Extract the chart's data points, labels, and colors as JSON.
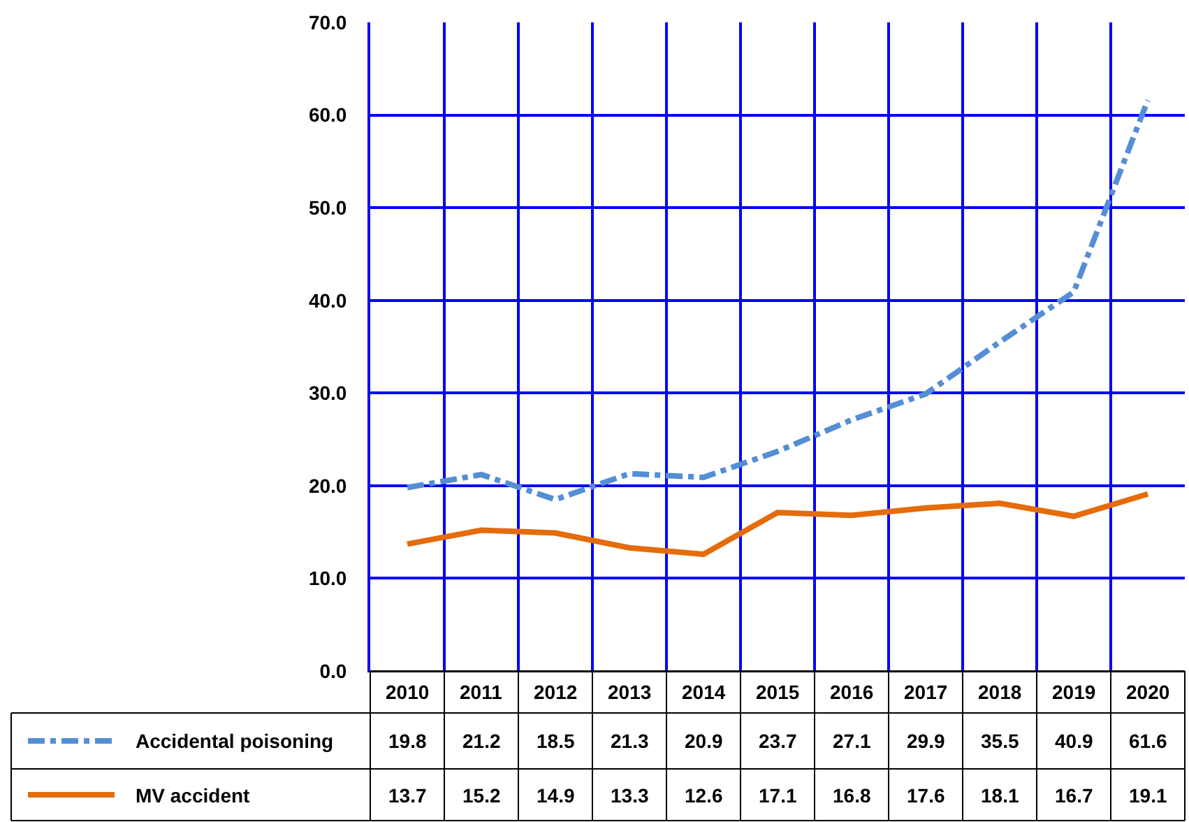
{
  "chart_data": {
    "type": "line",
    "categories": [
      "2010",
      "2011",
      "2012",
      "2013",
      "2014",
      "2015",
      "2016",
      "2017",
      "2018",
      "2019",
      "2020"
    ],
    "series": [
      {
        "name": "Accidental poisoning",
        "color": "#558ed5",
        "line_style": "dashdot",
        "values": [
          19.8,
          21.2,
          18.5,
          21.3,
          20.9,
          23.7,
          27.1,
          29.9,
          35.5,
          40.9,
          61.6
        ]
      },
      {
        "name": "MV accident",
        "color": "#e46c0a",
        "line_style": "solid",
        "values": [
          13.7,
          15.2,
          14.9,
          13.3,
          12.6,
          17.1,
          16.8,
          17.6,
          18.1,
          16.7,
          19.1
        ]
      }
    ],
    "ylim": [
      0,
      70
    ],
    "yticks": [
      {
        "value": 0,
        "label": "0.0"
      },
      {
        "value": 10,
        "label": "10.0"
      },
      {
        "value": 20,
        "label": "20.0"
      },
      {
        "value": 30,
        "label": "30.0"
      },
      {
        "value": 40,
        "label": "40.0"
      },
      {
        "value": 50,
        "label": "50.0"
      },
      {
        "value": 60,
        "label": "60.0"
      },
      {
        "value": 70,
        "label": "70.0"
      }
    ],
    "grid": true,
    "legend": "bottom",
    "data_labels": true,
    "marker": "none"
  }
}
